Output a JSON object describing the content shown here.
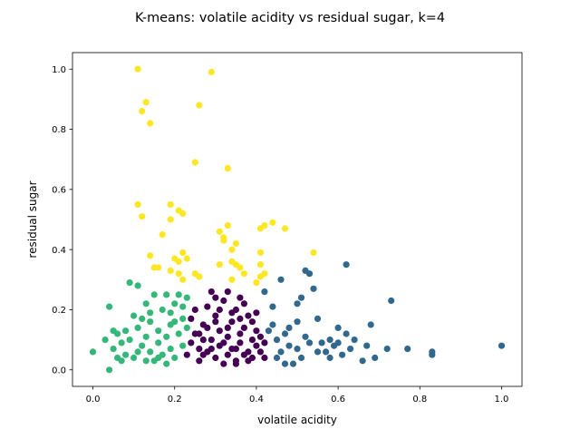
{
  "chart_data": {
    "type": "scatter",
    "title": "K-means: volatile acidity vs residual sugar, k=4",
    "xlabel": "volatile acidity",
    "ylabel": "residual sugar",
    "xlim": [
      -0.05,
      1.05
    ],
    "ylim": [
      -0.055,
      1.055
    ],
    "xticks": [
      0.0,
      0.2,
      0.4,
      0.6,
      0.8,
      1.0
    ],
    "xtick_labels": [
      "0.0",
      "0.2",
      "0.4",
      "0.6",
      "0.8",
      "1.0"
    ],
    "yticks": [
      0.0,
      0.2,
      0.4,
      0.6,
      0.8,
      1.0
    ],
    "ytick_labels": [
      "0.0",
      "0.2",
      "0.4",
      "0.6",
      "0.8",
      "1.0"
    ],
    "grid": false,
    "legend": "none",
    "series": [
      {
        "color": "#440154",
        "points": [
          [
            0.23,
            0.05
          ],
          [
            0.24,
            0.09
          ],
          [
            0.25,
            0.12
          ],
          [
            0.26,
            0.07
          ],
          [
            0.27,
            0.15
          ],
          [
            0.28,
            0.21
          ],
          [
            0.28,
            0.06
          ],
          [
            0.29,
            0.1
          ],
          [
            0.3,
            0.04
          ],
          [
            0.3,
            0.18
          ],
          [
            0.31,
            0.13
          ],
          [
            0.31,
            0.08
          ],
          [
            0.32,
            0.23
          ],
          [
            0.33,
            0.05
          ],
          [
            0.33,
            0.11
          ],
          [
            0.34,
            0.16
          ],
          [
            0.34,
            0.07
          ],
          [
            0.35,
            0.2
          ],
          [
            0.35,
            0.03
          ],
          [
            0.36,
            0.12
          ],
          [
            0.36,
            0.09
          ],
          [
            0.37,
            0.14
          ],
          [
            0.38,
            0.06
          ],
          [
            0.38,
            0.18
          ],
          [
            0.39,
            0.1
          ],
          [
            0.39,
            0.04
          ],
          [
            0.4,
            0.13
          ],
          [
            0.4,
            0.08
          ],
          [
            0.41,
            0.06
          ],
          [
            0.41,
            0.11
          ],
          [
            0.29,
            0.26
          ],
          [
            0.3,
            0.24
          ],
          [
            0.33,
            0.26
          ],
          [
            0.36,
            0.24
          ],
          [
            0.37,
            0.22
          ],
          [
            0.24,
            0.17
          ],
          [
            0.25,
            0.2
          ],
          [
            0.26,
            0.03
          ],
          [
            0.27,
            0.1
          ],
          [
            0.32,
            0.02
          ],
          [
            0.35,
            0.02
          ],
          [
            0.38,
            0.03
          ],
          [
            0.34,
            0.19
          ],
          [
            0.31,
            0.2
          ],
          [
            0.28,
            0.14
          ],
          [
            0.26,
            0.12
          ],
          [
            0.39,
            0.16
          ],
          [
            0.4,
            0.19
          ],
          [
            0.29,
            0.07
          ],
          [
            0.32,
            0.09
          ],
          [
            0.35,
            0.07
          ],
          [
            0.37,
            0.05
          ],
          [
            0.42,
            0.09
          ],
          [
            0.42,
            0.04
          ],
          [
            0.27,
            0.05
          ],
          [
            0.3,
            0.16
          ],
          [
            0.33,
            0.14
          ],
          [
            0.36,
            0.17
          ]
        ]
      },
      {
        "color": "#31688e",
        "points": [
          [
            0.42,
            0.26
          ],
          [
            0.44,
            0.21
          ],
          [
            0.44,
            0.15
          ],
          [
            0.45,
            0.1
          ],
          [
            0.46,
            0.06
          ],
          [
            0.46,
            0.3
          ],
          [
            0.47,
            0.12
          ],
          [
            0.48,
            0.08
          ],
          [
            0.49,
            0.02
          ],
          [
            0.5,
            0.22
          ],
          [
            0.5,
            0.16
          ],
          [
            0.51,
            0.04
          ],
          [
            0.51,
            0.24
          ],
          [
            0.52,
            0.11
          ],
          [
            0.52,
            0.33
          ],
          [
            0.53,
            0.32
          ],
          [
            0.54,
            0.27
          ],
          [
            0.55,
            0.17
          ],
          [
            0.56,
            0.09
          ],
          [
            0.57,
            0.06
          ],
          [
            0.58,
            0.04
          ],
          [
            0.59,
            0.08
          ],
          [
            0.6,
            0.14
          ],
          [
            0.61,
            0.05
          ],
          [
            0.62,
            0.12
          ],
          [
            0.62,
            0.35
          ],
          [
            0.63,
            0.07
          ],
          [
            0.64,
            0.1
          ],
          [
            0.66,
            0.03
          ],
          [
            0.67,
            0.08
          ],
          [
            0.68,
            0.15
          ],
          [
            0.69,
            0.04
          ],
          [
            0.72,
            0.07
          ],
          [
            0.73,
            0.23
          ],
          [
            0.77,
            0.07
          ],
          [
            0.83,
            0.06
          ],
          [
            0.83,
            0.05
          ],
          [
            1.0,
            0.08
          ],
          [
            0.45,
            0.04
          ],
          [
            0.47,
            0.02
          ],
          [
            0.53,
            0.09
          ],
          [
            0.55,
            0.06
          ],
          [
            0.48,
            0.14
          ],
          [
            0.5,
            0.07
          ],
          [
            0.43,
            0.13
          ],
          [
            0.6,
            0.09
          ],
          [
            0.58,
            0.1
          ]
        ]
      },
      {
        "color": "#35b779",
        "points": [
          [
            0.0,
            0.06
          ],
          [
            0.03,
            0.1
          ],
          [
            0.04,
            0.0
          ],
          [
            0.04,
            0.21
          ],
          [
            0.05,
            0.07
          ],
          [
            0.06,
            0.12
          ],
          [
            0.07,
            0.09
          ],
          [
            0.08,
            0.05
          ],
          [
            0.09,
            0.29
          ],
          [
            0.1,
            0.18
          ],
          [
            0.1,
            0.04
          ],
          [
            0.11,
            0.28
          ],
          [
            0.11,
            0.14
          ],
          [
            0.12,
            0.08
          ],
          [
            0.13,
            0.22
          ],
          [
            0.13,
            0.11
          ],
          [
            0.14,
            0.06
          ],
          [
            0.14,
            0.16
          ],
          [
            0.15,
            0.25
          ],
          [
            0.15,
            0.03
          ],
          [
            0.16,
            0.13
          ],
          [
            0.16,
            0.09
          ],
          [
            0.17,
            0.2
          ],
          [
            0.17,
            0.05
          ],
          [
            0.18,
            0.11
          ],
          [
            0.18,
            0.25
          ],
          [
            0.19,
            0.15
          ],
          [
            0.19,
            0.07
          ],
          [
            0.2,
            0.22
          ],
          [
            0.2,
            0.04
          ],
          [
            0.21,
            0.12
          ],
          [
            0.21,
            0.25
          ],
          [
            0.22,
            0.17
          ],
          [
            0.22,
            0.08
          ],
          [
            0.23,
            0.24
          ],
          [
            0.23,
            0.14
          ],
          [
            0.12,
            0.17
          ],
          [
            0.08,
            0.13
          ],
          [
            0.06,
            0.04
          ],
          [
            0.09,
            0.1
          ],
          [
            0.14,
            0.19
          ],
          [
            0.18,
            0.02
          ],
          [
            0.2,
            0.16
          ],
          [
            0.11,
            0.06
          ],
          [
            0.05,
            0.13
          ],
          [
            0.07,
            0.03
          ],
          [
            0.16,
            0.04
          ],
          [
            0.22,
            0.21
          ],
          [
            0.19,
            0.19
          ],
          [
            0.13,
            0.03
          ]
        ]
      },
      {
        "color": "#fde725",
        "points": [
          [
            0.11,
            1.0
          ],
          [
            0.29,
            0.99
          ],
          [
            0.13,
            0.89
          ],
          [
            0.26,
            0.88
          ],
          [
            0.12,
            0.86
          ],
          [
            0.14,
            0.82
          ],
          [
            0.25,
            0.69
          ],
          [
            0.33,
            0.67
          ],
          [
            0.11,
            0.55
          ],
          [
            0.19,
            0.55
          ],
          [
            0.21,
            0.53
          ],
          [
            0.22,
            0.52
          ],
          [
            0.12,
            0.51
          ],
          [
            0.19,
            0.5
          ],
          [
            0.44,
            0.49
          ],
          [
            0.42,
            0.48
          ],
          [
            0.41,
            0.47
          ],
          [
            0.33,
            0.48
          ],
          [
            0.47,
            0.47
          ],
          [
            0.17,
            0.45
          ],
          [
            0.31,
            0.46
          ],
          [
            0.32,
            0.44
          ],
          [
            0.32,
            0.43
          ],
          [
            0.34,
            0.4
          ],
          [
            0.35,
            0.42
          ],
          [
            0.41,
            0.39
          ],
          [
            0.54,
            0.39
          ],
          [
            0.22,
            0.39
          ],
          [
            0.23,
            0.37
          ],
          [
            0.14,
            0.38
          ],
          [
            0.2,
            0.37
          ],
          [
            0.21,
            0.36
          ],
          [
            0.34,
            0.36
          ],
          [
            0.35,
            0.35
          ],
          [
            0.36,
            0.34
          ],
          [
            0.37,
            0.32
          ],
          [
            0.31,
            0.35
          ],
          [
            0.41,
            0.35
          ],
          [
            0.15,
            0.34
          ],
          [
            0.19,
            0.33
          ],
          [
            0.16,
            0.34
          ],
          [
            0.25,
            0.32
          ],
          [
            0.26,
            0.31
          ],
          [
            0.21,
            0.32
          ],
          [
            0.41,
            0.31
          ],
          [
            0.42,
            0.32
          ],
          [
            0.4,
            0.29
          ],
          [
            0.34,
            0.3
          ],
          [
            0.22,
            0.3
          ]
        ]
      }
    ]
  }
}
